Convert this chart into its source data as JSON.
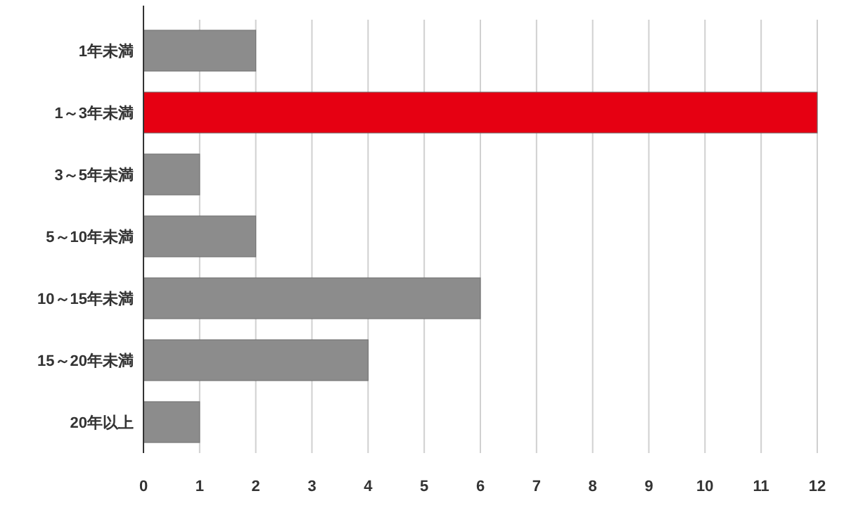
{
  "chart_data": {
    "type": "bar",
    "orientation": "horizontal",
    "categories": [
      "1年未満",
      "1～3年未満",
      "3～5年未満",
      "5～10年未満",
      "10～15年未満",
      "15～20年未満",
      "20年以上"
    ],
    "values": [
      2,
      12,
      1,
      2,
      6,
      4,
      1
    ],
    "colors": [
      "#8c8c8c",
      "#e60012",
      "#8c8c8c",
      "#8c8c8c",
      "#8c8c8c",
      "#8c8c8c",
      "#8c8c8c"
    ],
    "xlim": [
      0,
      12
    ],
    "xticks": [
      0,
      1,
      2,
      3,
      4,
      5,
      6,
      7,
      8,
      9,
      10,
      11,
      12
    ],
    "grid": "x"
  }
}
